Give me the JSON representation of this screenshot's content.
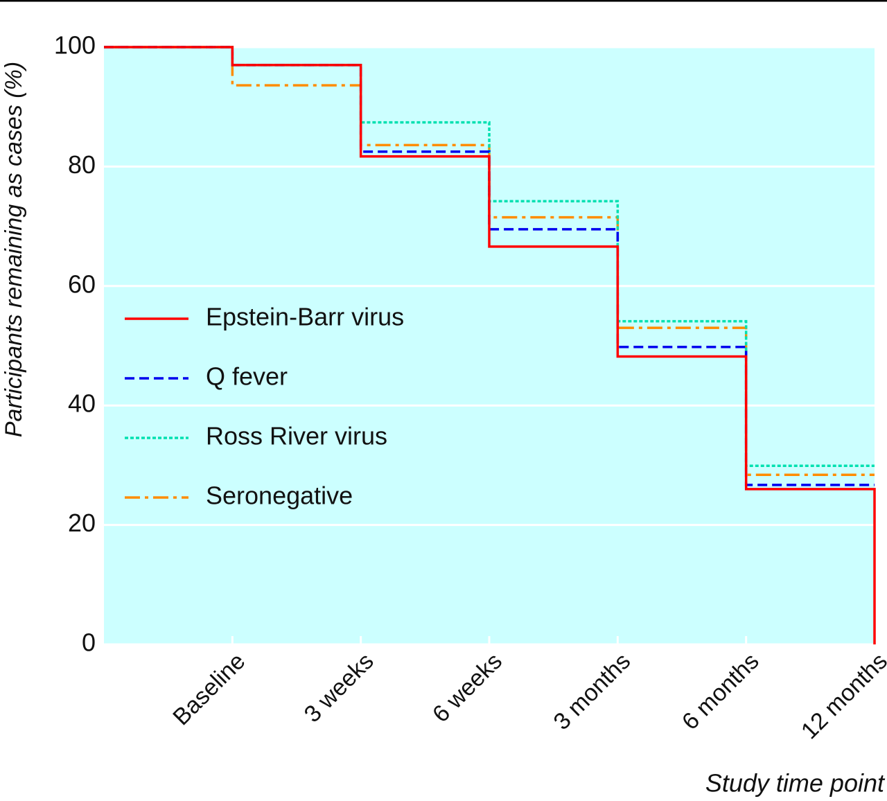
{
  "chart_data": {
    "type": "step",
    "y_label": "Participants remaining as cases (%)",
    "x_label": "Study time point",
    "categories": [
      null,
      "Baseline",
      "3 weeks",
      "6 weeks",
      "3 months",
      "6 months",
      "12 months"
    ],
    "series": [
      {
        "name": "Epstein-Barr virus",
        "color": "#ff0000",
        "dash": "solid",
        "values": [
          100,
          97,
          81.7,
          66.6,
          48.2,
          26,
          0
        ]
      },
      {
        "name": "Q fever",
        "color": "#0000ee",
        "dash": "dashed",
        "values": [
          100,
          97,
          82.5,
          69.5,
          49.8,
          26.7,
          null
        ]
      },
      {
        "name": "Ross River virus",
        "color": "#00e0b0",
        "dash": "dotted",
        "values": [
          100,
          97,
          87.4,
          74.2,
          54.1,
          29.9,
          null
        ]
      },
      {
        "name": "Seronegative",
        "color": "#ff8c00",
        "dash": "dashdot",
        "values": [
          100,
          93.6,
          83.6,
          71.5,
          53,
          28.4,
          null
        ]
      }
    ],
    "ylim": [
      0,
      100
    ],
    "yticks": [
      0,
      20,
      40,
      60,
      80,
      100
    ],
    "grid": true,
    "legend": "left"
  }
}
